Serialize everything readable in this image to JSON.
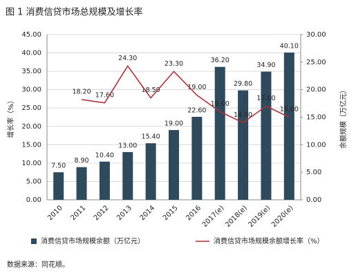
{
  "chart_data": {
    "type": "bar",
    "title": "图 1  消费信贷市场总规模及增长率",
    "y_label": "增长率（%）",
    "y2_label": "余额规模（万亿元）",
    "source": "数据来源：同花顺。",
    "categories": [
      "2010",
      "2011",
      "2012",
      "2013",
      "2014",
      "2015",
      "2016",
      "2017(e)",
      "2018(e)",
      "2019(e)",
      "2020(e)"
    ],
    "series": [
      {
        "name": "消费信贷市场规模余额（万亿元）",
        "type": "bar",
        "color": "#2f4a5d",
        "values": [
          7.5,
          8.9,
          10.4,
          13,
          15.4,
          19,
          22.6,
          36.2,
          29.8,
          34.9,
          40.1
        ],
        "value_labels": [
          "7.50",
          "8.90",
          "10.40",
          "13.00",
          "15.40",
          "19.00",
          "22.60",
          "36.20",
          "29.80",
          "34.90",
          "40.10"
        ]
      },
      {
        "name": "消费信贷市场规模余额增长率（%）",
        "type": "line",
        "axis": "y2",
        "color": "#a8323a",
        "values": [
          null,
          18.2,
          17.6,
          24.3,
          18.5,
          23.3,
          19,
          16,
          14,
          17,
          15
        ],
        "value_labels": [
          null,
          "18.20",
          "17.60",
          "24.30",
          "18.50",
          "23.30",
          "19.00",
          "16.00",
          "14.00",
          "17.00",
          "15.00"
        ]
      }
    ],
    "ylim": [
      0,
      45
    ],
    "yticks": [
      {
        "value": 0,
        "label": "0.00"
      },
      {
        "value": 5,
        "label": "5.00"
      },
      {
        "value": 10,
        "label": "10.00"
      },
      {
        "value": 15,
        "label": "15.00"
      },
      {
        "value": 20,
        "label": "20.00"
      },
      {
        "value": 25,
        "label": "25.00"
      },
      {
        "value": 30,
        "label": "30.00"
      },
      {
        "value": 35,
        "label": "35.00"
      },
      {
        "value": 40,
        "label": "40.00"
      },
      {
        "value": 45,
        "label": "45.00"
      }
    ],
    "y2lim": [
      0,
      30
    ],
    "y2ticks": [
      {
        "value": 0,
        "label": "0.00"
      },
      {
        "value": 5,
        "label": "5.00"
      },
      {
        "value": 10,
        "label": "10.00"
      },
      {
        "value": 15,
        "label": "15.00"
      },
      {
        "value": 20,
        "label": "20.00"
      },
      {
        "value": 25,
        "label": "25.00"
      },
      {
        "value": 30,
        "label": "30.00"
      }
    ],
    "grid": true
  }
}
